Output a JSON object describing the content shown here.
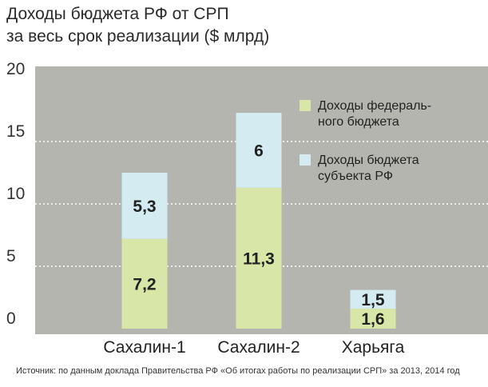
{
  "chart_data": {
    "type": "bar",
    "stacked": true,
    "title": "Доходы бюджета РФ от СРП",
    "subtitle": "за весь срок реализации ($ млрд)",
    "categories": [
      "Сахалин-1",
      "Сахалин-2",
      "Харьяга"
    ],
    "series": [
      {
        "name": "Доходы федерального бюджета",
        "legend_lines": [
          "Доходы федераль-",
          "ного бюджета"
        ],
        "color": "#d8e6a8",
        "values": [
          7.2,
          11.3,
          1.6
        ],
        "labels": [
          "7,2",
          "11,3",
          "1,6"
        ]
      },
      {
        "name": "Доходы бюджета субъекта РФ",
        "legend_lines": [
          "Доходы бюджета",
          "субъекта РФ"
        ],
        "color": "#d3ebf1",
        "values": [
          5.3,
          6,
          1.5
        ],
        "labels": [
          "5,3",
          "6",
          "1,5"
        ]
      }
    ],
    "y_ticks": [
      0,
      5,
      10,
      15,
      20
    ],
    "ylim": [
      0,
      20
    ],
    "grid": true,
    "legend_position": "top-right",
    "plot_background": "#b5b5b0",
    "source": "Источник: по данным доклада Правительства РФ «Об итогах работы по реализации СРП» за 2013, 2014 год"
  }
}
